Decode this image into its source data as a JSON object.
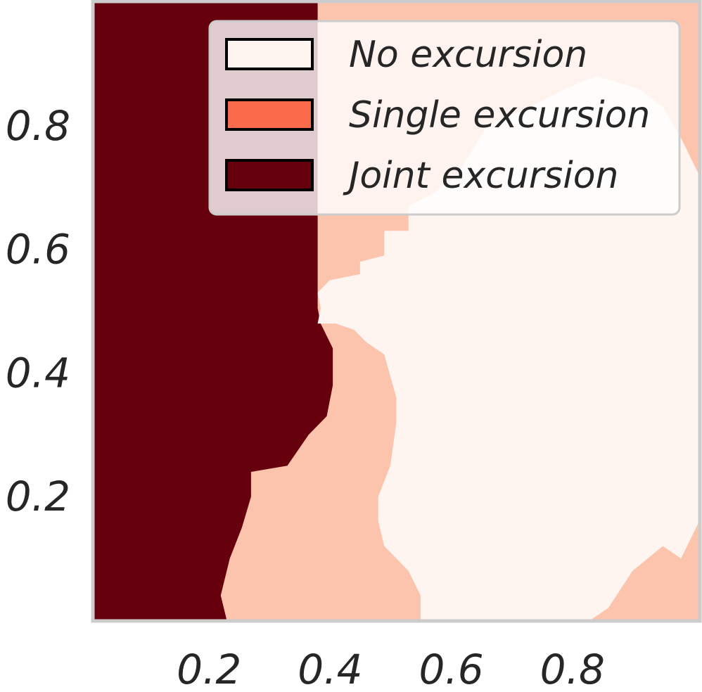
{
  "chart_data": {
    "type": "heatmap",
    "title": "",
    "xlabel": "",
    "ylabel": "",
    "xlim": [
      0,
      1
    ],
    "ylim": [
      0,
      1
    ],
    "xticks": [
      0.2,
      0.4,
      0.6,
      0.8
    ],
    "yticks": [
      0.2,
      0.4,
      0.6,
      0.8
    ],
    "grid": false,
    "legend": {
      "placement": "top-right",
      "entries": [
        {
          "label": "No excursion",
          "color": "#fff5f0"
        },
        {
          "label": "Single excursion",
          "color": "#fb6a4a"
        },
        {
          "label": "Joint excursion",
          "color": "#67000d"
        }
      ]
    },
    "display_colors": {
      "none": "#fff5f0",
      "single": "#fcc3ad",
      "joint": "#67000d"
    },
    "regions": [
      {
        "class": "joint",
        "polygon": [
          [
            0,
            0
          ],
          [
            0,
            1
          ],
          [
            0.37,
            1
          ],
          [
            0.37,
            0.505
          ],
          [
            0.375,
            0.48
          ],
          [
            0.395,
            0.44
          ],
          [
            0.395,
            0.38
          ],
          [
            0.385,
            0.33
          ],
          [
            0.355,
            0.3
          ],
          [
            0.32,
            0.25
          ],
          [
            0.26,
            0.24
          ],
          [
            0.26,
            0.2
          ],
          [
            0.245,
            0.15
          ],
          [
            0.225,
            0.1
          ],
          [
            0.21,
            0.04
          ],
          [
            0.22,
            0
          ]
        ]
      },
      {
        "class": "none",
        "polygon": [
          [
            0.37,
            0.48
          ],
          [
            0.375,
            0.505
          ],
          [
            0.37,
            0.53
          ],
          [
            0.39,
            0.55
          ],
          [
            0.44,
            0.56
          ],
          [
            0.44,
            0.58
          ],
          [
            0.48,
            0.59
          ],
          [
            0.48,
            0.63
          ],
          [
            0.52,
            0.63
          ],
          [
            0.52,
            0.67
          ],
          [
            0.56,
            0.69
          ],
          [
            0.6,
            0.72
          ],
          [
            0.65,
            0.8
          ],
          [
            0.72,
            0.83
          ],
          [
            0.78,
            0.86
          ],
          [
            0.83,
            0.88
          ],
          [
            0.9,
            0.86
          ],
          [
            0.94,
            0.83
          ],
          [
            0.97,
            0.78
          ],
          [
            1,
            0.72
          ],
          [
            1,
            0.16
          ],
          [
            0.98,
            0.12
          ],
          [
            0.97,
            0.1
          ],
          [
            0.94,
            0.12
          ],
          [
            0.89,
            0.08
          ],
          [
            0.85,
            0.02
          ],
          [
            0.82,
            0
          ],
          [
            0.54,
            0
          ],
          [
            0.54,
            0.04
          ],
          [
            0.52,
            0.08
          ],
          [
            0.48,
            0.12
          ],
          [
            0.47,
            0.16
          ],
          [
            0.47,
            0.2
          ],
          [
            0.49,
            0.25
          ],
          [
            0.5,
            0.32
          ],
          [
            0.5,
            0.36
          ],
          [
            0.48,
            0.43
          ],
          [
            0.45,
            0.45
          ],
          [
            0.43,
            0.47
          ],
          [
            0.4,
            0.48
          ]
        ]
      }
    ]
  }
}
